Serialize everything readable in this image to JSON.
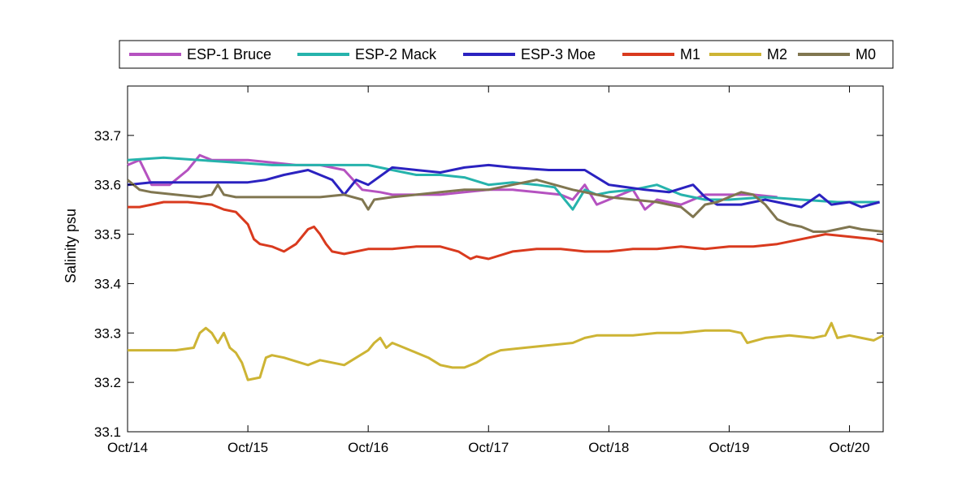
{
  "chart_data": {
    "type": "line",
    "title": "",
    "xlabel": "",
    "ylabel": "Salinity psu",
    "x_ticks": [
      "Oct/14",
      "Oct/15",
      "Oct/16",
      "Oct/17",
      "Oct/18",
      "Oct/19",
      "Oct/20"
    ],
    "y_ticks": [
      "33.1",
      "33.2",
      "33.3",
      "33.4",
      "33.5",
      "33.6",
      "33.7"
    ],
    "xlim": [
      14.0,
      20.28
    ],
    "ylim": [
      33.1,
      33.8
    ],
    "grid": false,
    "legend_position": "top",
    "series": [
      {
        "name": "ESP-1 Bruce",
        "color": "#b552c0",
        "x": [
          14.0,
          14.1,
          14.2,
          14.35,
          14.5,
          14.6,
          14.7,
          14.9,
          15.0,
          15.2,
          15.4,
          15.6,
          15.8,
          15.95,
          16.1,
          16.2,
          16.4,
          16.6,
          16.8,
          17.0,
          17.2,
          17.4,
          17.6,
          17.7,
          17.8,
          17.9,
          18.0,
          18.1,
          18.2,
          18.3,
          18.4,
          18.6,
          18.8,
          19.0,
          19.2,
          19.4
        ],
        "y": [
          33.64,
          33.65,
          33.6,
          33.6,
          33.63,
          33.66,
          33.65,
          33.65,
          33.65,
          33.645,
          33.64,
          33.64,
          33.63,
          33.59,
          33.585,
          33.58,
          33.58,
          33.58,
          33.585,
          33.59,
          33.59,
          33.585,
          33.58,
          33.57,
          33.6,
          33.56,
          33.57,
          33.58,
          33.59,
          33.55,
          33.57,
          33.56,
          33.58,
          33.58,
          33.58,
          33.575
        ]
      },
      {
        "name": "ESP-2 Mack",
        "color": "#26b3ac",
        "x": [
          14.0,
          14.3,
          14.6,
          14.9,
          15.2,
          15.5,
          15.8,
          16.0,
          16.2,
          16.4,
          16.6,
          16.8,
          17.0,
          17.2,
          17.4,
          17.55,
          17.7,
          17.8,
          17.9,
          18.0,
          18.2,
          18.4,
          18.6,
          18.8,
          19.0,
          19.3,
          19.6,
          19.9,
          20.25
        ],
        "y": [
          33.65,
          33.655,
          33.65,
          33.645,
          33.64,
          33.64,
          33.64,
          33.64,
          33.63,
          33.62,
          33.62,
          33.615,
          33.6,
          33.605,
          33.6,
          33.595,
          33.55,
          33.59,
          33.58,
          33.585,
          33.59,
          33.6,
          33.58,
          33.57,
          33.57,
          33.575,
          33.57,
          33.565,
          33.565
        ]
      },
      {
        "name": "ESP-3 Moe",
        "color": "#2b22c0",
        "x": [
          14.0,
          14.2,
          14.4,
          14.6,
          14.8,
          15.0,
          15.15,
          15.3,
          15.5,
          15.7,
          15.8,
          15.9,
          16.0,
          16.2,
          16.4,
          16.6,
          16.8,
          17.0,
          17.2,
          17.5,
          17.8,
          18.0,
          18.3,
          18.5,
          18.7,
          18.8,
          18.9,
          19.1,
          19.3,
          19.5,
          19.6,
          19.75,
          19.85,
          20.0,
          20.1,
          20.25
        ],
        "y": [
          33.6,
          33.605,
          33.605,
          33.605,
          33.605,
          33.605,
          33.61,
          33.62,
          33.63,
          33.61,
          33.58,
          33.61,
          33.6,
          33.635,
          33.63,
          33.625,
          33.635,
          33.64,
          33.635,
          33.63,
          33.63,
          33.6,
          33.59,
          33.585,
          33.6,
          33.575,
          33.56,
          33.56,
          33.57,
          33.56,
          33.555,
          33.58,
          33.56,
          33.565,
          33.555,
          33.565
        ]
      },
      {
        "name": "M1",
        "color": "#d93a1e",
        "x": [
          14.0,
          14.1,
          14.2,
          14.3,
          14.5,
          14.7,
          14.8,
          14.9,
          15.0,
          15.05,
          15.1,
          15.2,
          15.3,
          15.4,
          15.5,
          15.55,
          15.6,
          15.65,
          15.7,
          15.8,
          16.0,
          16.2,
          16.4,
          16.6,
          16.75,
          16.85,
          16.9,
          17.0,
          17.2,
          17.4,
          17.6,
          17.8,
          18.0,
          18.2,
          18.4,
          18.6,
          18.8,
          19.0,
          19.2,
          19.4,
          19.6,
          19.8,
          20.0,
          20.2,
          20.28
        ],
        "y": [
          33.555,
          33.555,
          33.56,
          33.565,
          33.565,
          33.56,
          33.55,
          33.545,
          33.52,
          33.49,
          33.48,
          33.475,
          33.465,
          33.48,
          33.51,
          33.515,
          33.5,
          33.48,
          33.465,
          33.46,
          33.47,
          33.47,
          33.475,
          33.475,
          33.465,
          33.45,
          33.455,
          33.45,
          33.465,
          33.47,
          33.47,
          33.465,
          33.465,
          33.47,
          33.47,
          33.475,
          33.47,
          33.475,
          33.475,
          33.48,
          33.49,
          33.5,
          33.495,
          33.49,
          33.485
        ]
      },
      {
        "name": "M2",
        "color": "#cdb434",
        "x": [
          14.0,
          14.2,
          14.4,
          14.55,
          14.6,
          14.65,
          14.7,
          14.75,
          14.8,
          14.85,
          14.9,
          14.95,
          15.0,
          15.1,
          15.15,
          15.2,
          15.3,
          15.5,
          15.6,
          15.7,
          15.8,
          15.9,
          16.0,
          16.05,
          16.1,
          16.15,
          16.2,
          16.3,
          16.4,
          16.5,
          16.6,
          16.7,
          16.8,
          16.9,
          17.0,
          17.1,
          17.3,
          17.5,
          17.7,
          17.8,
          17.9,
          18.0,
          18.2,
          18.4,
          18.6,
          18.8,
          19.0,
          19.1,
          19.15,
          19.3,
          19.5,
          19.7,
          19.8,
          19.85,
          19.9,
          20.0,
          20.1,
          20.2,
          20.28
        ],
        "y": [
          33.265,
          33.265,
          33.265,
          33.27,
          33.3,
          33.31,
          33.3,
          33.28,
          33.3,
          33.27,
          33.26,
          33.24,
          33.205,
          33.21,
          33.25,
          33.255,
          33.25,
          33.235,
          33.245,
          33.24,
          33.235,
          33.25,
          33.265,
          33.28,
          33.29,
          33.27,
          33.28,
          33.27,
          33.26,
          33.25,
          33.235,
          33.23,
          33.23,
          33.24,
          33.255,
          33.265,
          33.27,
          33.275,
          33.28,
          33.29,
          33.295,
          33.295,
          33.295,
          33.3,
          33.3,
          33.305,
          33.305,
          33.3,
          33.28,
          33.29,
          33.295,
          33.29,
          33.295,
          33.32,
          33.29,
          33.295,
          33.29,
          33.285,
          33.295
        ]
      },
      {
        "name": "M0",
        "color": "#807650",
        "x": [
          14.0,
          14.05,
          14.1,
          14.2,
          14.4,
          14.6,
          14.7,
          14.75,
          14.8,
          14.9,
          15.0,
          15.2,
          15.4,
          15.6,
          15.8,
          15.95,
          16.0,
          16.05,
          16.2,
          16.4,
          16.6,
          16.8,
          17.0,
          17.2,
          17.4,
          17.55,
          17.7,
          17.8,
          17.9,
          18.0,
          18.2,
          18.4,
          18.5,
          18.6,
          18.7,
          18.8,
          18.9,
          19.0,
          19.1,
          19.2,
          19.3,
          19.4,
          19.5,
          19.6,
          19.7,
          19.8,
          19.9,
          20.0,
          20.1,
          20.28
        ],
        "y": [
          33.61,
          33.6,
          33.59,
          33.585,
          33.58,
          33.575,
          33.58,
          33.6,
          33.58,
          33.575,
          33.575,
          33.575,
          33.575,
          33.575,
          33.58,
          33.57,
          33.55,
          33.57,
          33.575,
          33.58,
          33.585,
          33.59,
          33.59,
          33.6,
          33.61,
          33.6,
          33.59,
          33.585,
          33.58,
          33.575,
          33.57,
          33.565,
          33.56,
          33.555,
          33.535,
          33.56,
          33.565,
          33.575,
          33.585,
          33.58,
          33.56,
          33.53,
          33.52,
          33.515,
          33.505,
          33.505,
          33.51,
          33.515,
          33.51,
          33.505
        ]
      }
    ]
  }
}
